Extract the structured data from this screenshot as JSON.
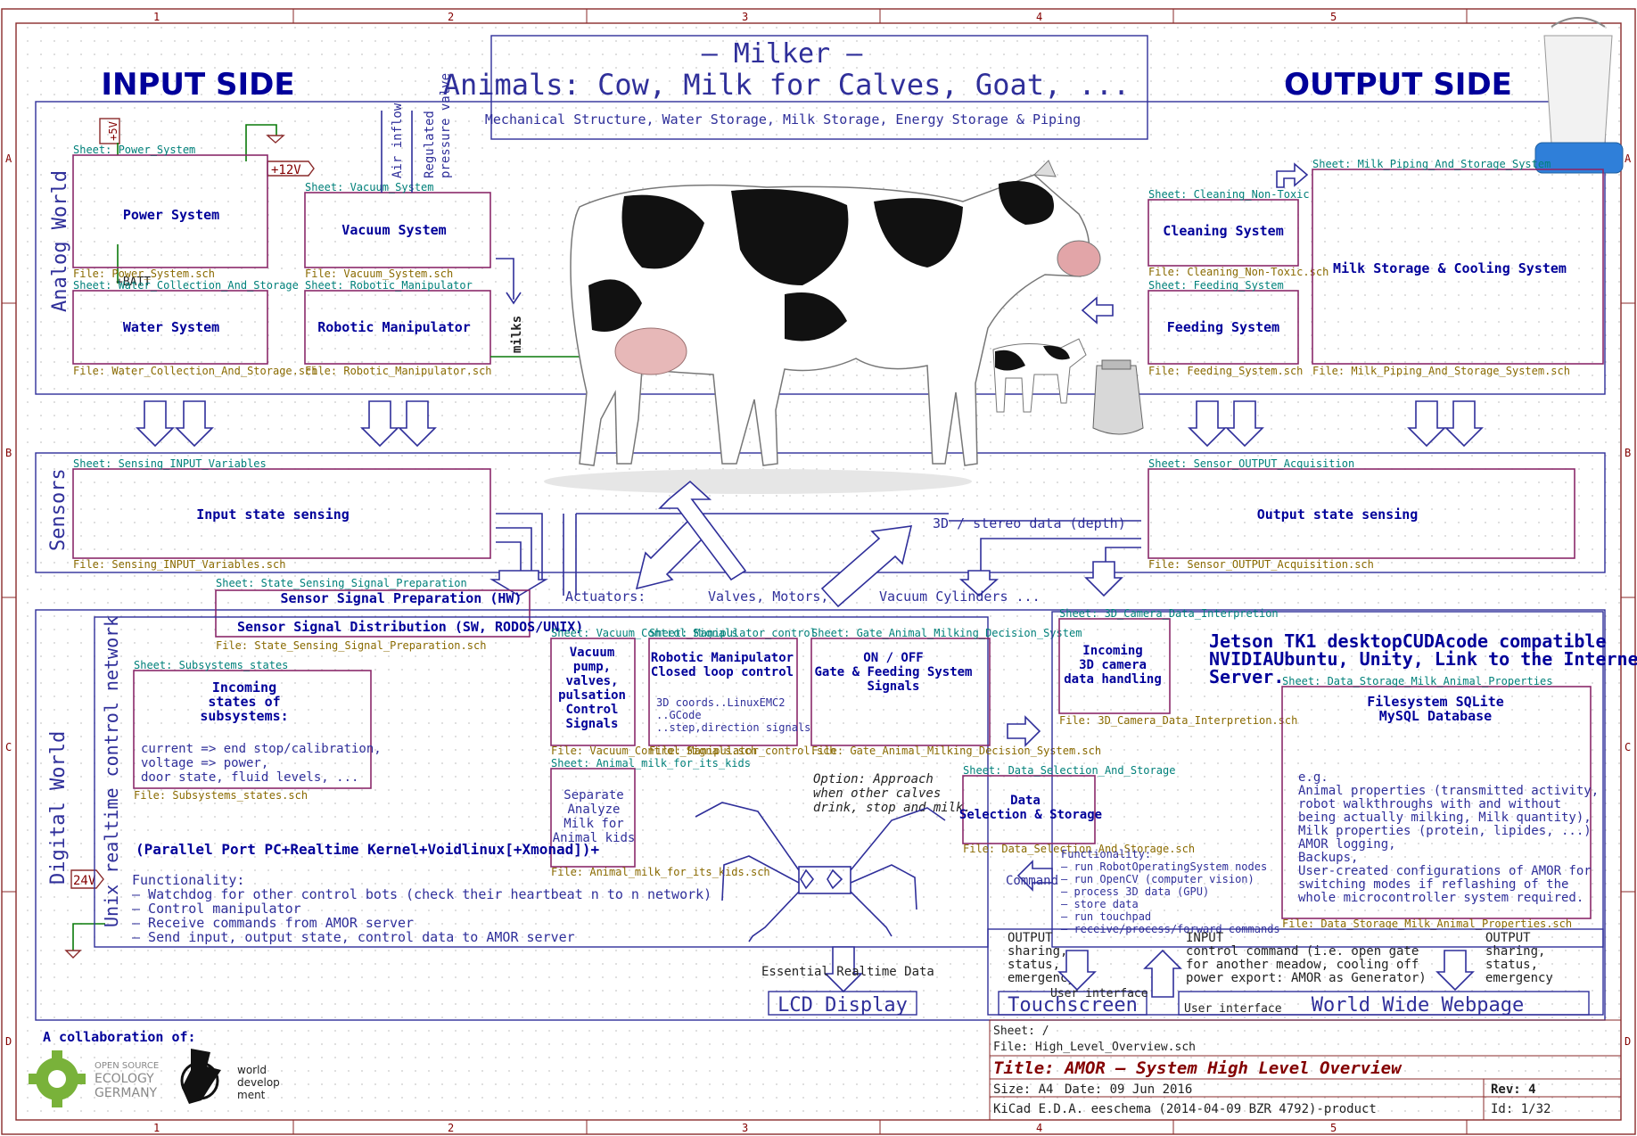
{
  "colors": {
    "frame": "#8a2a2a",
    "wire": "#2f2f9a",
    "sheet_border": "#8a2a6a",
    "sheet_name": "#00807a",
    "file_name": "#8a6a00",
    "heading": "#00009a",
    "label_red": "#840000",
    "green_wire": "#0a7a0a"
  },
  "border": {
    "cols": [
      "1",
      "2",
      "3",
      "4",
      "5"
    ],
    "rows": [
      "A",
      "B",
      "C",
      "D"
    ]
  },
  "title_box": {
    "line1": "— Milker —",
    "line2": "Animals: Cow, Milk for Calves, Goat, ...",
    "line3": "Mechanical Structure, Water Storage, Milk Storage, Energy Storage & Piping"
  },
  "headings": {
    "input": "INPUT SIDE",
    "output": "OUTPUT SIDE"
  },
  "regions": {
    "analog": "Analog World",
    "sensors": "Sensors",
    "digital": "Digital World",
    "unix": "Unix realtime control network"
  },
  "power_labels": {
    "p5v": "+5V",
    "p12v": "+12V",
    "batt": "+BATT",
    "p24v": "24V"
  },
  "labels": {
    "air_inflow": "Air inflow",
    "pressure_valve_1": "Regulated",
    "pressure_valve_2": "pressure valve",
    "milks": "milks",
    "stereo": "3D / stereo data (depth)",
    "actuators": "Actuators:",
    "valves": "Valves, Motors,",
    "vacuum_cyl": "Vacuum Cylinders ...",
    "option1": "Option: Approach",
    "option2": "when other calves",
    "option3": "drink, stop and milk.",
    "command": "Command",
    "essential": "Essential Realtime Data",
    "ui1": "User interface",
    "ui2": "User interface"
  },
  "sheets": {
    "power": {
      "sheet": "Sheet: Power_System",
      "file": "File: Power_System.sch",
      "title": "Power System"
    },
    "vacuum": {
      "sheet": "Sheet: Vacuum_System",
      "file": "File: Vacuum_System.sch",
      "title": "Vacuum System"
    },
    "water": {
      "sheet": "Sheet: Water_Collection_And_Storage",
      "file": "File: Water_Collection_And_Storage.sch",
      "title": "Water System"
    },
    "robot": {
      "sheet": "Sheet: Robotic_Manipulator",
      "file": "File: Robotic_Manipulator.sch",
      "title": "Robotic Manipulator"
    },
    "cleaning": {
      "sheet": "Sheet: Cleaning_Non-Toxic",
      "file": "File: Cleaning_Non-Toxic.sch",
      "title": "Cleaning System"
    },
    "feeding": {
      "sheet": "Sheet: Feeding_System",
      "file": "File: Feeding_System.sch",
      "title": "Feeding System"
    },
    "milkstore": {
      "sheet": "Sheet: Milk_Piping_And_Storage_System",
      "file": "File: Milk_Piping_And_Storage_System.sch",
      "title": "Milk Storage & Cooling System"
    },
    "sens_in": {
      "sheet": "Sheet: Sensing_INPUT_Variables",
      "file": "File: Sensing_INPUT_Variables.sch",
      "title": "Input state sensing"
    },
    "sens_out": {
      "sheet": "Sheet: Sensor_OUTPUT_Acquisition",
      "file": "File: Sensor_OUTPUT_Acquisition.sch",
      "title": "Output state sensing"
    },
    "ssp": {
      "sheet": "Sheet: State_Sensing_Signal_Preparation",
      "file": "File: State_Sensing_Signal_Preparation.sch",
      "title": "Sensor Signal Preparation (HW)"
    },
    "subs": {
      "sheet": "Sheet: Subsystems_states",
      "file": "File: Subsystems_states.sch",
      "t1": "Incoming",
      "t2": "states of",
      "t3": "subsystems:",
      "d1": "current => end stop/calibration,",
      "d2": "voltage => power,",
      "d3": "door state, fluid levels, ..."
    },
    "vcs": {
      "sheet": "Sheet: Vacuum_Control_Signals",
      "file": "File: Vacuum_Control_Signals.sch",
      "t": [
        "Vacuum",
        "pump,",
        "valves,",
        "pulsation",
        "Control",
        "Signals"
      ]
    },
    "manip": {
      "sheet": "Sheet: Manipulator_control",
      "file": "File: Manipulator_control.sch",
      "t1": "Robotic Manipulator",
      "t2": "Closed loop control",
      "d1": "3D coords..LinuxEMC2",
      "d2": "..GCode",
      "d3": "..step,direction signals"
    },
    "gate": {
      "sheet": "Sheet: Gate_Animal_Milking_Decision_System",
      "file": "File: Gate_Animal_Milking_Decision_System.sch",
      "t1": "ON / OFF",
      "t2": "Gate & Feeding System",
      "t3": "Signals"
    },
    "kids": {
      "sheet": "Sheet: Animal_milk_for_its_kids",
      "file": "File: Animal_milk_for_its_kids.sch",
      "t": [
        "Separate",
        "Analyze",
        "Milk for",
        "Animal kids"
      ]
    },
    "cam": {
      "sheet": "Sheet: 3D_Camera_Data_Interpretion",
      "file": "File: 3D_Camera_Data_Interpretion.sch",
      "t": [
        "Incoming",
        "3D camera",
        "data handling"
      ]
    },
    "dss": {
      "sheet": "Sheet: Data_Selection_And_Storage",
      "file": "File: Data_Selection_And_Storage.sch",
      "t1": "Data",
      "t2": "Selection & Storage"
    },
    "db": {
      "sheet": "Sheet: Data_Storage_Milk_Animal_Properties",
      "file": "File: Data_Storage_Milk_Animal_Properties.sch",
      "t1": "Filesystem SQLite",
      "t2": "MySQL Database",
      "body": [
        "e.g.",
        "Animal properties (transmitted activity,",
        "robot walkthroughs with and without",
        "being actually milking, Milk quantity),",
        "Milk properties (protein, lipides, ...)",
        "AMOR logging,",
        "Backups,",
        "User-created configurations of AMOR for",
        "switching modes if reflashing of the",
        "whole microcontroller system required."
      ]
    }
  },
  "ssd": {
    "title": "Sensor Signal Distribution (SW, RODOS/UNIX)"
  },
  "parallel": "(Parallel Port PC+Realtime Kernel+Voidlinux[+Xmonad])+",
  "functionality": [
    "Functionality:",
    "– Watchdog for other control bots (check their heartbeat n to n network)",
    "– Control manipulator",
    "– Receive commands from AMOR server",
    "– Send input, output state, control data to AMOR server"
  ],
  "jetson": {
    "l1": "Jetson TK1 desktopCUDAcode compatible",
    "l2": "NVIDIAUbuntu, Unity, Link to the Internet,",
    "l3": "Server."
  },
  "jetson_func": [
    "Functionality:",
    "– run RobotOperatingSystem nodes",
    "– run OpenCV (computer vision)",
    "– process 3D data (GPU)",
    "– store data",
    "– run touchpad",
    "– receive/process/forward commands"
  ],
  "io_panel": {
    "out1": [
      "OUTPUT",
      "sharing,",
      "status,",
      "emergency"
    ],
    "in": [
      "INPUT",
      "control command (i.e. open gate",
      "for another meadow, cooling off",
      "power export: AMOR as Generator)"
    ],
    "out2": [
      "OUTPUT",
      "sharing,",
      "status,",
      "emergency"
    ]
  },
  "displays": {
    "lcd": "LCD Display",
    "touch": "Touchscreen",
    "web": "World Wide Webpage"
  },
  "collab": {
    "title": "A collaboration of:",
    "ose1": "OPEN SOURCE",
    "ose2": "ECOLOGY",
    "ose3": "GERMANY",
    "wd1": "world",
    "wd2": "develop",
    "wd3": "ment"
  },
  "titleblock": {
    "sheet": "Sheet: /",
    "file": "File: High_Level_Overview.sch",
    "title": "Title: AMOR – System High Level Overview",
    "size": "Size: A4",
    "date": "Date: 09 Jun 2016",
    "rev": "Rev: 4",
    "kicad": "KiCad E.D.A.  eeschema (2014-04-09 BZR 4792)-product",
    "id": "Id: 1/32"
  }
}
